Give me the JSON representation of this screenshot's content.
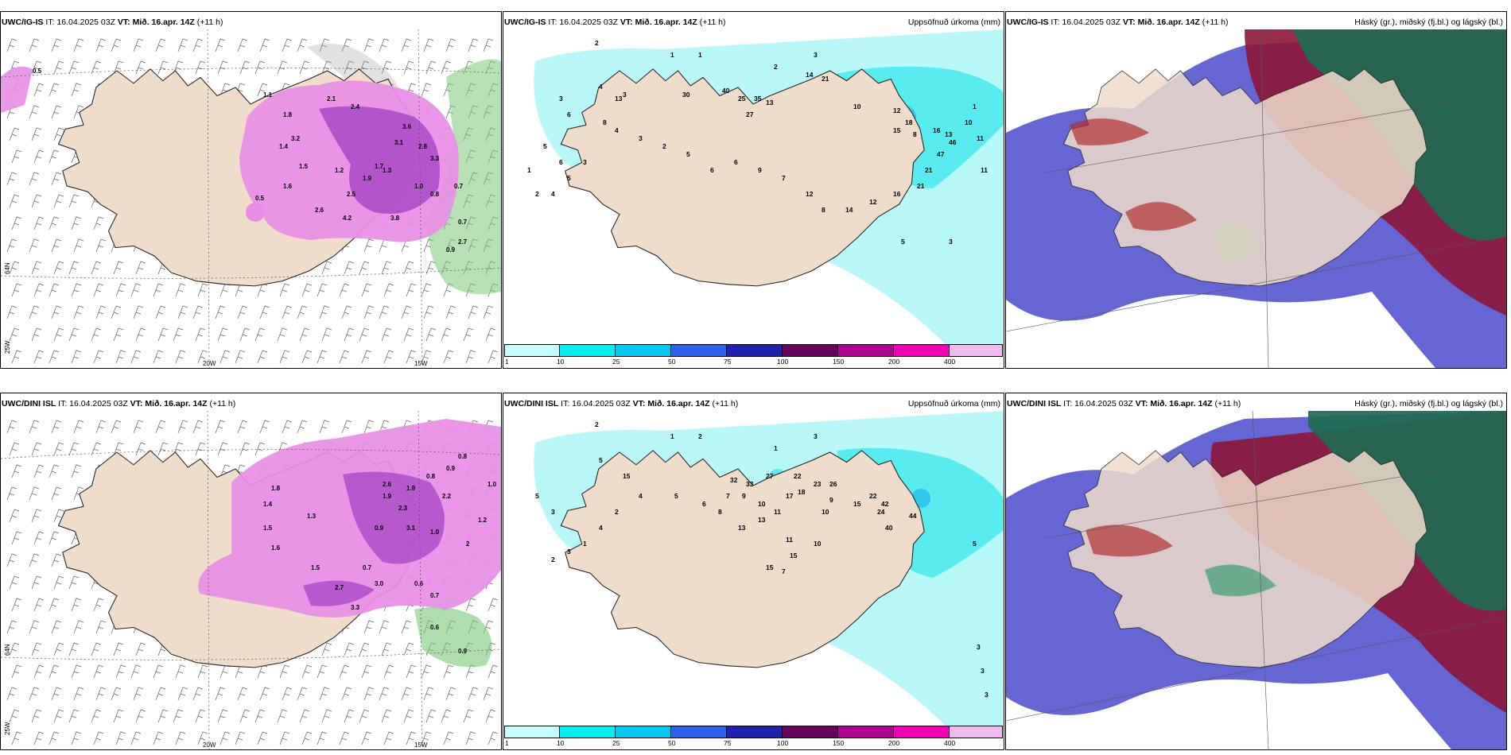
{
  "colors": {
    "land": "#f0dccb",
    "sea_precip": "#b8f8f8",
    "cyan": "#40e8ee",
    "snow_pink": "#e88ee8",
    "snow_dark": "#a040c0",
    "green": "#78c878",
    "high_cloud": "#1c6b52",
    "mid_cloud": "#8c1638",
    "low_cloud": "#4a4acc"
  },
  "panels": [
    {
      "model": "UWC/IG-IS",
      "it_text": "IT: 16.04.2025 03Z",
      "vt_text": "VT: Mið. 16.apr. 14Z",
      "lead_text": "(+11 h)",
      "axis_labels": {
        "lon1": "20W",
        "lon2": "15W",
        "lat1": "25W",
        "lat2": "64N"
      },
      "snow_labels": [
        "0.5",
        "1.1",
        "1.8",
        "2.1",
        "2.4",
        "3.6",
        "3.1",
        "2.8",
        "3.3",
        "1.5",
        "1.2",
        "1.7",
        "3.2",
        "1.4",
        "2.6",
        "1.9",
        "2.5",
        "1.0",
        "0.8",
        "1.3",
        "0.7",
        "0.7",
        "0.9",
        "2.7",
        "1.6",
        "0.5",
        "4.2",
        "3.8"
      ]
    },
    {
      "model": "UWC/IG-IS",
      "it_text": "IT: 16.04.2025 03Z",
      "vt_text": "VT: Mið. 16.apr. 14Z",
      "lead_text": "(+11 h)",
      "title_right": "Uppsöfnuð úrkoma (mm)",
      "precip_labels": [
        "2",
        "1",
        "1",
        "2",
        "3",
        "4",
        "3",
        "3",
        "6",
        "8",
        "13",
        "30",
        "40",
        "25",
        "27",
        "35",
        "13",
        "14",
        "21",
        "10",
        "12",
        "15",
        "18",
        "8",
        "16",
        "13",
        "10",
        "11",
        "46",
        "47",
        "21",
        "21",
        "16",
        "12",
        "14",
        "8",
        "12",
        "7",
        "9",
        "6",
        "6",
        "5",
        "2",
        "3",
        "4",
        "3",
        "5",
        "4",
        "2",
        "1",
        "5",
        "6",
        "5",
        "3",
        "1",
        "11"
      ],
      "colorbar": {
        "ticks": [
          "1",
          "10",
          "25",
          "50",
          "75",
          "100",
          "150",
          "200",
          "400"
        ]
      }
    },
    {
      "model": "UWC/IG-IS",
      "it_text": "IT: 16.04.2025 03Z",
      "vt_text": "VT: Mið. 16.apr. 14Z",
      "lead_text": "(+11 h)",
      "title_right": "Háský (gr.), miðský (fj.bl.) og lágský (bl.)"
    },
    {
      "model": "UWC/DINI ISL",
      "it_text": "IT: 16.04.2025 03Z",
      "vt_text": "VT: Mið. 16.apr. 14Z",
      "lead_text": "(+11 h)",
      "axis_labels": {
        "lon1": "20W",
        "lon2": "15W",
        "lat1": "25W",
        "lat2": "64N"
      },
      "snow_labels": [
        "0.8",
        "0.9",
        "1.9",
        "1.0",
        "2.6",
        "0.8",
        "1.9",
        "1.8",
        "1.4",
        "1.5",
        "2.3",
        "2.2",
        "1.6",
        "3.1",
        "1.0",
        "0.7",
        "1.5",
        "3.0",
        "2.7",
        "3.3",
        "0.6",
        "0.7",
        "0.6",
        "0.9",
        "2",
        "1.2",
        "0.9",
        "1.3"
      ]
    },
    {
      "model": "UWC/DINI ISL",
      "it_text": "IT: 16.04.2025 03Z",
      "vt_text": "VT: Mið. 16.apr. 14Z",
      "lead_text": "(+11 h)",
      "title_right": "Uppsöfnuð úrkoma (mm)",
      "precip_labels": [
        "2",
        "1",
        "2",
        "1",
        "3",
        "5",
        "15",
        "32",
        "33",
        "27",
        "22",
        "23",
        "26",
        "18",
        "17",
        "9",
        "10",
        "22",
        "24",
        "42",
        "44",
        "40",
        "15",
        "10",
        "11",
        "13",
        "11",
        "10",
        "9",
        "7",
        "13",
        "15",
        "15",
        "7",
        "8",
        "6",
        "5",
        "4",
        "2",
        "4",
        "1",
        "3",
        "2",
        "3",
        "5",
        "5",
        "3",
        "3",
        "3"
      ],
      "colorbar": {
        "ticks": [
          "1",
          "10",
          "25",
          "50",
          "75",
          "100",
          "150",
          "200",
          "400"
        ]
      }
    },
    {
      "model": "UWC/DINI ISL",
      "it_text": "IT: 16.04.2025 03Z",
      "vt_text": "VT: Mið. 16.apr. 14Z",
      "lead_text": "(+11 h)",
      "title_right": "Háský (gr.), miðský (fj.bl.) og lágský (bl.)"
    }
  ]
}
